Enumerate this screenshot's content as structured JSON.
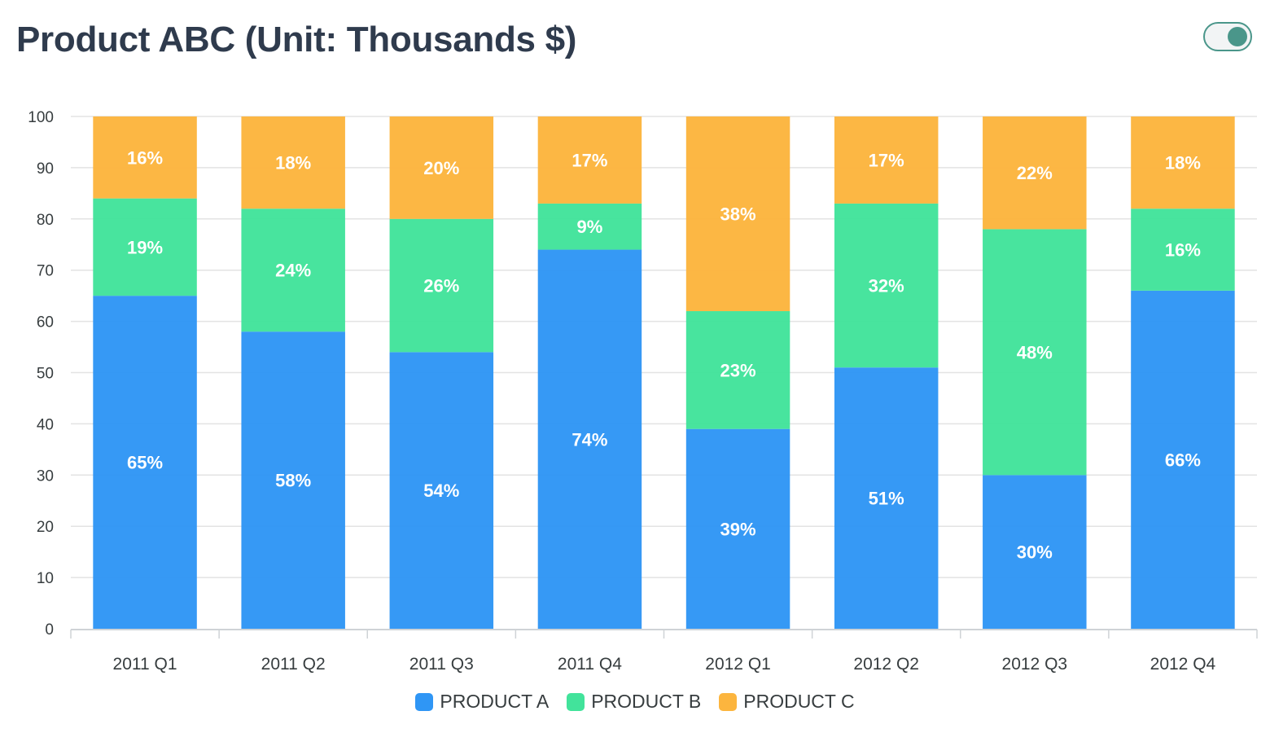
{
  "title": "Product ABC (Unit: Thousands $)",
  "toggle": {
    "state": "on"
  },
  "colors": {
    "product_a": "#2f96f5",
    "product_b": "#42e39b",
    "product_c": "#fcb53e",
    "grid": "#e3e3e3",
    "axis_text": "#373d3f",
    "title": "#2f3b4d"
  },
  "chart_data": {
    "type": "bar",
    "stacked": true,
    "stack_mode": "100%",
    "title": "Product ABC (Unit: Thousands $)",
    "categories": [
      "2011 Q1",
      "2011 Q2",
      "2011 Q3",
      "2011 Q4",
      "2012 Q1",
      "2012 Q2",
      "2012 Q3",
      "2012 Q4"
    ],
    "series": [
      {
        "name": "PRODUCT A",
        "color": "#2f96f5",
        "values": [
          65,
          58,
          54,
          74,
          39,
          51,
          30,
          66
        ]
      },
      {
        "name": "PRODUCT B",
        "color": "#42e39b",
        "values": [
          19,
          24,
          26,
          9,
          23,
          32,
          48,
          16
        ]
      },
      {
        "name": "PRODUCT C",
        "color": "#fcb53e",
        "values": [
          16,
          18,
          20,
          17,
          38,
          17,
          22,
          18
        ]
      }
    ],
    "data_labels": [
      [
        "65%",
        "58%",
        "54%",
        "74%",
        "39%",
        "51%",
        "30%",
        "66%"
      ],
      [
        "19%",
        "24%",
        "26%",
        "9%",
        "23%",
        "32%",
        "48%",
        "16%"
      ],
      [
        "16%",
        "18%",
        "20%",
        "17%",
        "38%",
        "17%",
        "22%",
        "18%"
      ]
    ],
    "ylim": [
      0,
      100
    ],
    "yticks": [
      "0",
      "10",
      "20",
      "30",
      "40",
      "50",
      "60",
      "70",
      "80",
      "90",
      "100"
    ],
    "grid": true,
    "legend_position": "bottom"
  }
}
